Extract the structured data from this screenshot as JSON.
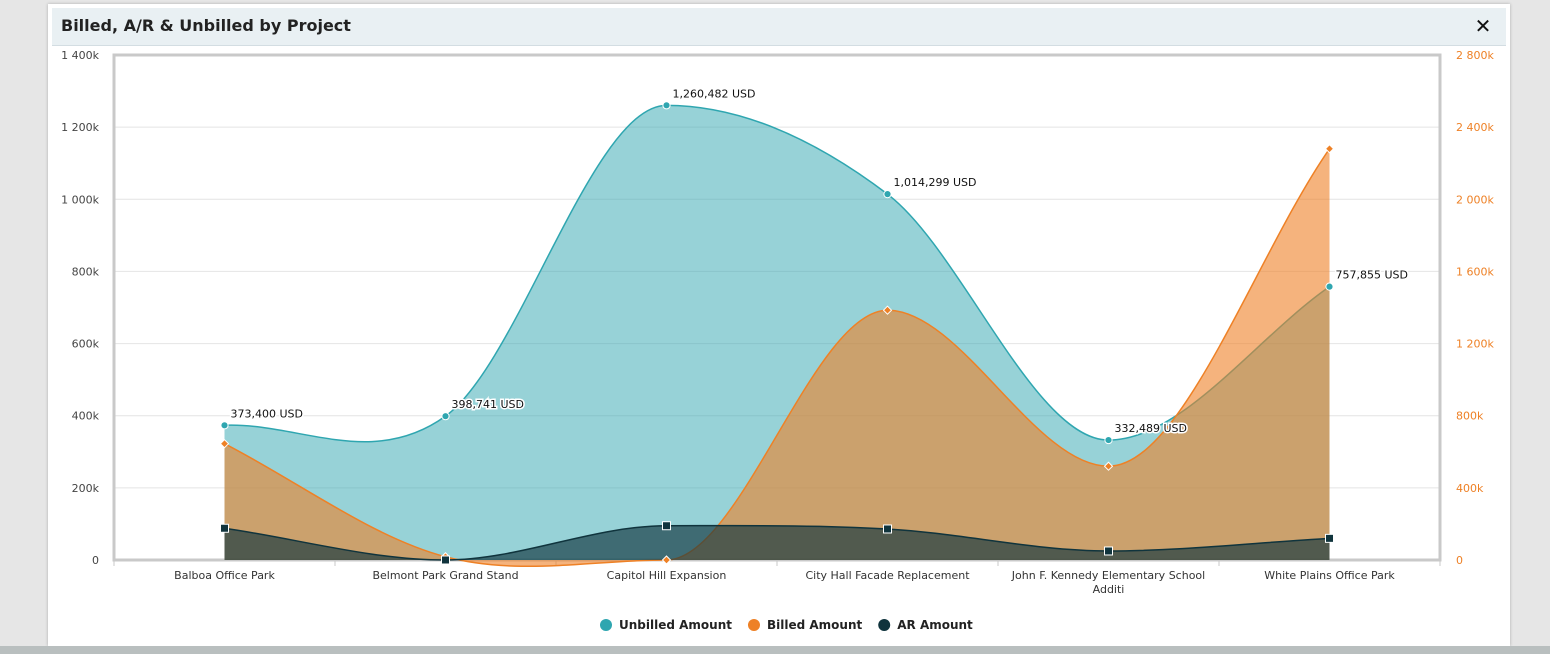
{
  "dialog": {
    "title": "Billed, A/R & Unbilled by Project",
    "close_label": "✕"
  },
  "colors": {
    "unbilled": "#2fa6b0",
    "billed": "#ee8126",
    "ar": "#10343d",
    "right_axis": "#ee8126"
  },
  "chart_data": {
    "type": "area",
    "categories": [
      "Balboa Office Park",
      "Belmont Park Grand Stand",
      "Capitol Hill Expansion",
      "City Hall Facade Replacement",
      "John F. Kennedy Elementary School Additi",
      "White Plains Office Park"
    ],
    "series": [
      {
        "name": "Unbilled Amount",
        "axis": "left",
        "values": [
          373400,
          398741,
          1260482,
          1014299,
          332489,
          757855
        ],
        "labels": [
          "373,400 USD",
          "398,741 USD",
          "1,260,482 USD",
          "1,014,299 USD",
          "332,489 USD",
          "757,855 USD"
        ]
      },
      {
        "name": "Billed Amount",
        "axis": "right",
        "values": [
          645000,
          18000,
          0,
          1385000,
          520000,
          2280000
        ]
      },
      {
        "name": "AR Amount",
        "axis": "left",
        "values": [
          88000,
          0,
          95000,
          86000,
          25000,
          60000
        ]
      }
    ],
    "y_left": {
      "min": 0,
      "max": 1400000,
      "ticks": [
        "0",
        "200k",
        "400k",
        "600k",
        "800k",
        "1 000k",
        "1 200k",
        "1 400k"
      ]
    },
    "y_right": {
      "min": 0,
      "max": 2800000,
      "ticks": [
        "0",
        "400k",
        "800k",
        "1 200k",
        "1 600k",
        "2 000k",
        "2 400k",
        "2 800k"
      ]
    },
    "grid": true,
    "legend": "bottom-center"
  }
}
